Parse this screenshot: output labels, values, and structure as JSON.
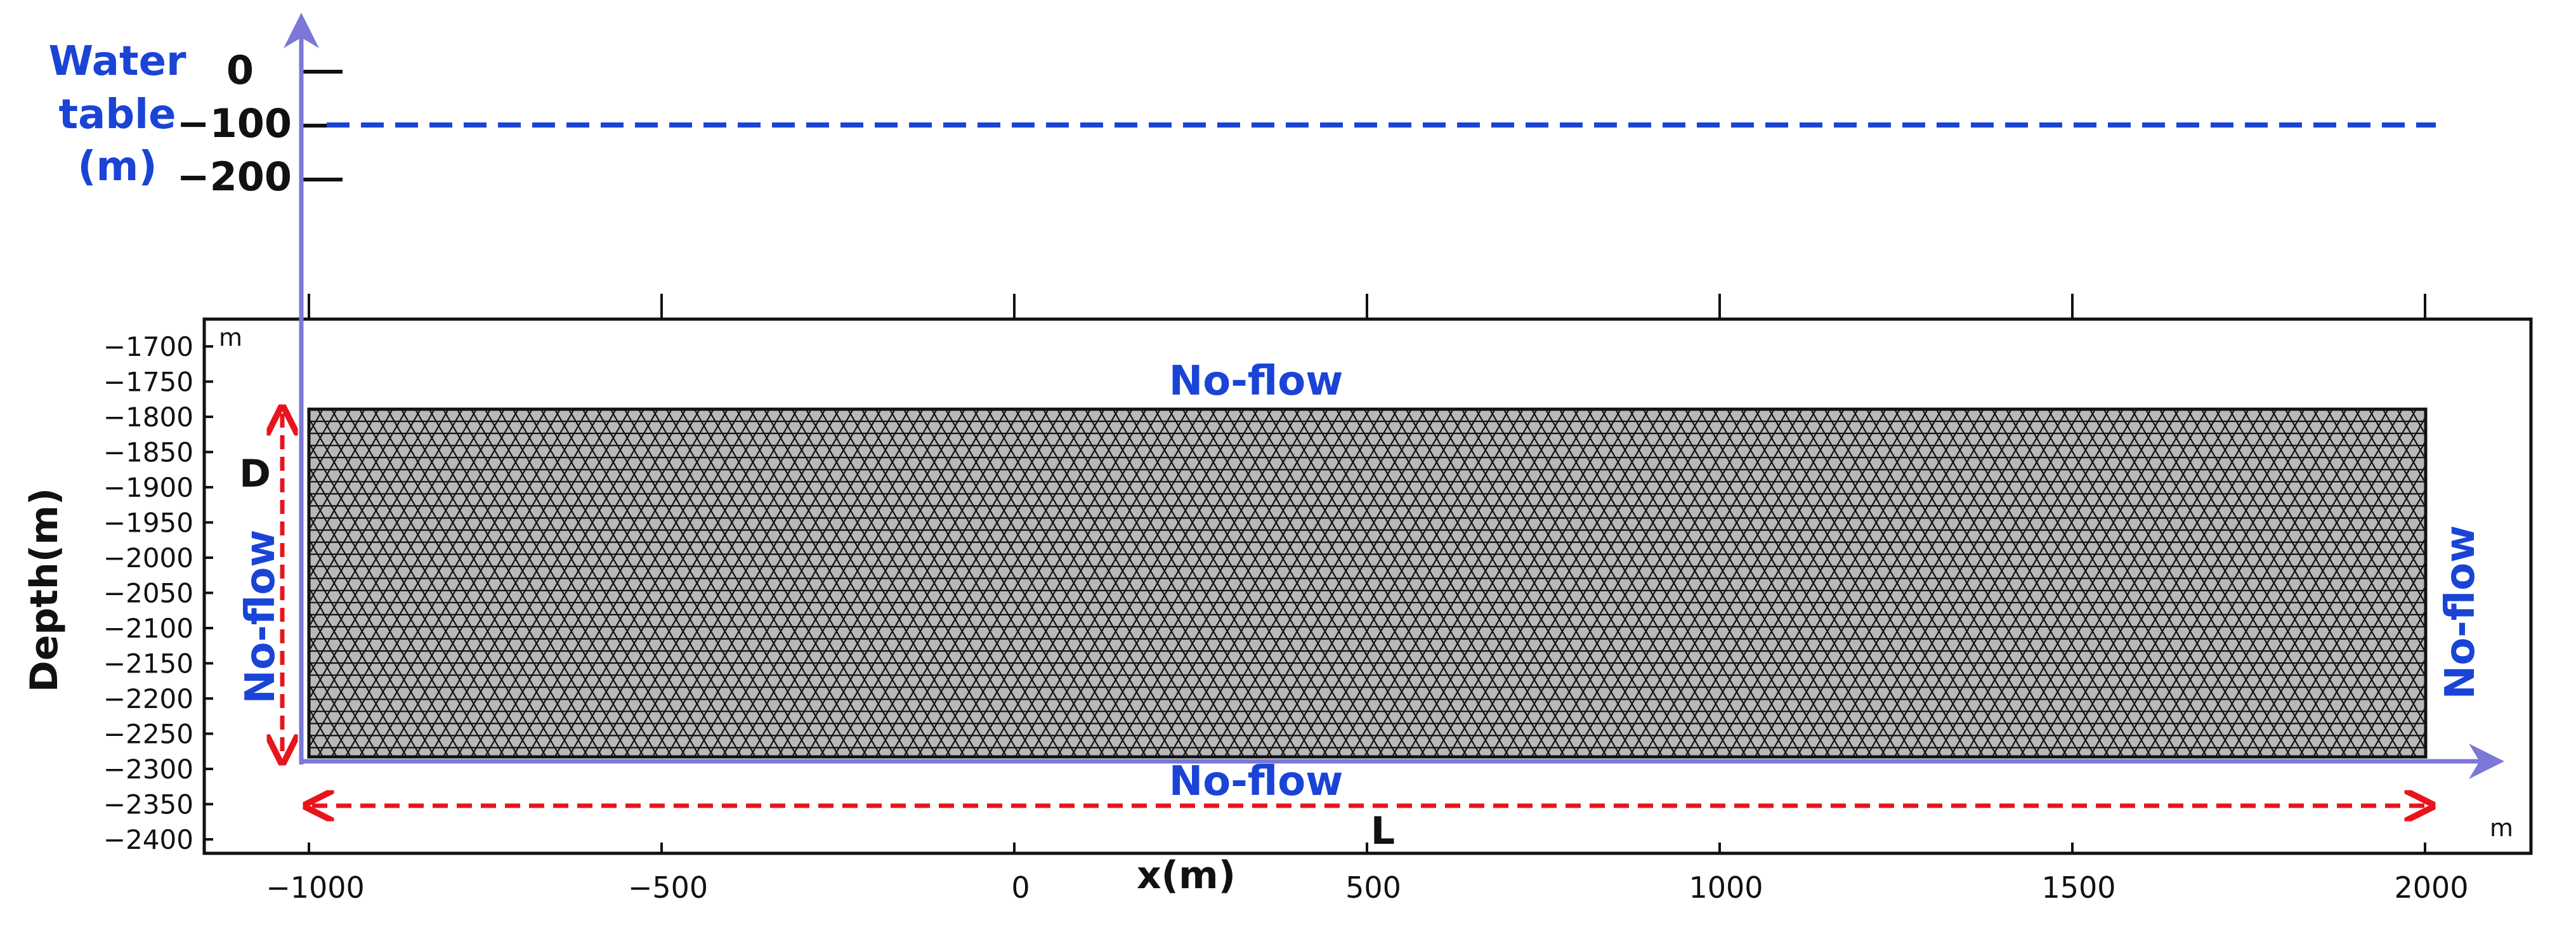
{
  "water_table_panel": {
    "label_lines": [
      "Water",
      "table",
      "(m)"
    ],
    "ticks": [
      "0",
      "−100",
      "−200"
    ],
    "color": "#1a44d6"
  },
  "depth_panel": {
    "ylabel": "Depth(m)",
    "xlabel": "x(m)",
    "y_unit": "m",
    "x_unit": "m",
    "y_ticks": [
      "−1700",
      "−1750",
      "−1800",
      "−1850",
      "−1900",
      "−1950",
      "−2000",
      "−2050",
      "−2100",
      "−2150",
      "−2200",
      "−2250",
      "−2300",
      "−2350",
      "−2400"
    ],
    "x_ticks": [
      "−1000",
      "−500",
      "0",
      "500",
      "1000",
      "1500",
      "2000"
    ]
  },
  "boundaries": {
    "top": "No-flow",
    "bottom": "No-flow",
    "left": "No-flow",
    "right": "No-flow",
    "color": "#1a44d6"
  },
  "dimensions": {
    "height": "D",
    "length": "L",
    "color": "#e8141c"
  },
  "mesh": {
    "fill": "#b8b8b8",
    "line": "#111111"
  },
  "axis_arrow_color": "#7b78d8"
}
